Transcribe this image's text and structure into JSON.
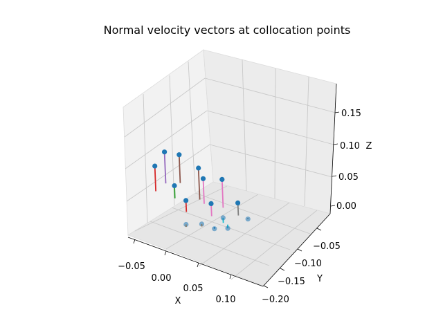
{
  "chart_data": {
    "type": "scatter",
    "projection": "3d",
    "title": "Normal velocity vectors at collocation points",
    "xlabel": "X",
    "ylabel": "Y",
    "zlabel": "Z",
    "grid": true,
    "xticks": [
      "−0.05",
      "0.00",
      "0.05",
      "0.10"
    ],
    "yticks": [
      "−0.05",
      "−0.10",
      "−0.15",
      "−0.20"
    ],
    "zticks": [
      "0.00",
      "0.05",
      "0.10",
      "0.15"
    ],
    "point_color": "#1f77b4",
    "points": [
      {
        "x": -0.05,
        "y": -0.06,
        "z": 0.05,
        "vector_dz": -0.04,
        "vector_color": "#d62728"
      },
      {
        "x": -0.04,
        "y": -0.05,
        "z": 0.07,
        "vector_dz": -0.05,
        "vector_color": "#9467bd"
      },
      {
        "x": -0.02,
        "y": -0.06,
        "z": 0.03,
        "vector_dz": -0.02,
        "vector_color": "#2ca02c"
      },
      {
        "x": -0.02,
        "y": -0.045,
        "z": 0.07,
        "vector_dz": -0.045,
        "vector_color": "#8c564b"
      },
      {
        "x": 0.01,
        "y": -0.08,
        "z": 0.03,
        "vector_dz": -0.018,
        "vector_color": "#d62728"
      },
      {
        "x": 0.015,
        "y": -0.09,
        "z": 0.0,
        "vector_dz": -0.004,
        "vector_color": "#ff7f0e"
      },
      {
        "x": 0.01,
        "y": -0.045,
        "z": 0.06,
        "vector_dz": -0.05,
        "vector_color": "#8c564b"
      },
      {
        "x": 0.02,
        "y": -0.05,
        "z": 0.05,
        "vector_dz": -0.04,
        "vector_color": "#e377c2"
      },
      {
        "x": 0.04,
        "y": -0.09,
        "z": 0.01,
        "vector_dz": -0.004,
        "vector_color": "#ff7f0e"
      },
      {
        "x": 0.05,
        "y": -0.08,
        "z": 0.04,
        "vector_dz": -0.02,
        "vector_color": "#e377c2"
      },
      {
        "x": 0.06,
        "y": -0.09,
        "z": 0.01,
        "vector_dz": 0.003,
        "vector_color": "#1f77b4"
      },
      {
        "x": 0.05,
        "y": -0.05,
        "z": 0.06,
        "vector_dz": -0.045,
        "vector_color": "#e377c2"
      },
      {
        "x": 0.065,
        "y": -0.075,
        "z": 0.02,
        "vector_dz": -0.008,
        "vector_color": "#17becf"
      },
      {
        "x": 0.075,
        "y": -0.08,
        "z": 0.01,
        "vector_dz": 0.006,
        "vector_color": "#17becf"
      },
      {
        "x": 0.08,
        "y": -0.06,
        "z": 0.04,
        "vector_dz": -0.02,
        "vector_color": "#7f7f7f"
      },
      {
        "x": 0.095,
        "y": -0.06,
        "z": 0.02,
        "vector_dz": 0.002,
        "vector_color": "#7f7f7f"
      }
    ]
  }
}
